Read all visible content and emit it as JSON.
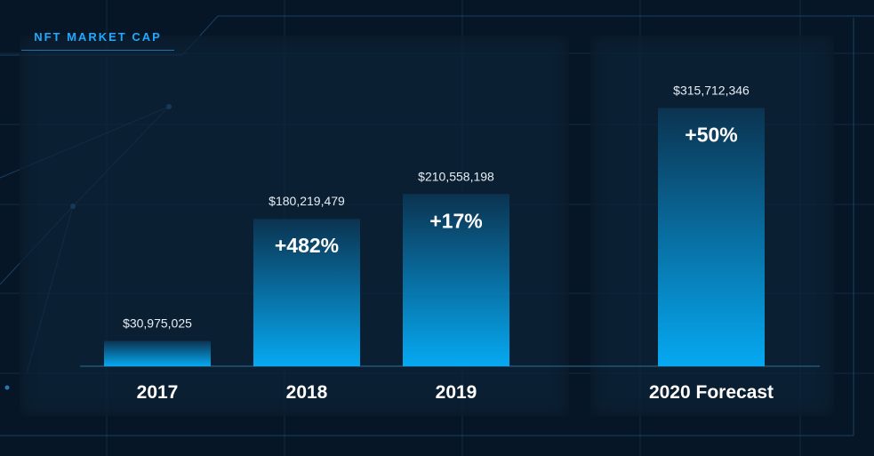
{
  "chart_data": {
    "type": "bar",
    "title": "NFT MARKET CAP",
    "categories": [
      "2017",
      "2018",
      "2019",
      "2020 Forecast"
    ],
    "values": [
      30975025,
      180219479,
      210558198,
      315712346
    ],
    "value_labels": [
      "$30,975,025",
      "$180,219,479",
      "$210,558,198",
      "$315,712,346"
    ],
    "growth_labels": [
      "",
      "+482%",
      "+17%",
      "+50%"
    ],
    "ylim": [
      0,
      350000000
    ],
    "grid": false,
    "legend": "none",
    "colors": {
      "bar_top": "#0b3350",
      "bar_bottom": "#06a9f2",
      "accent": "#1fa9ff"
    }
  }
}
